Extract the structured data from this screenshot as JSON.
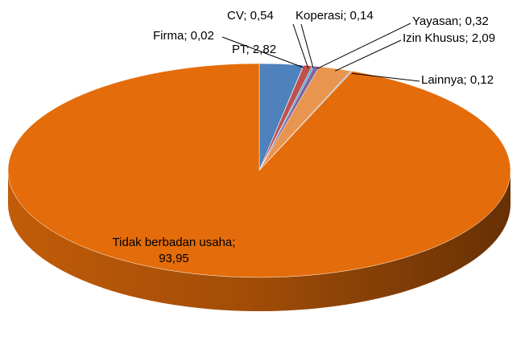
{
  "chart_data": {
    "type": "pie",
    "three_d": true,
    "label_separator": "; ",
    "categories": [
      "PT",
      "Firma",
      "CV",
      "Koperasi",
      "Yayasan",
      "Izin Khusus",
      "Lainnya",
      "Tidak berbadan usaha"
    ],
    "values": [
      2.82,
      0.02,
      0.54,
      0.14,
      0.32,
      2.09,
      0.12,
      93.95
    ],
    "value_labels": [
      "2,82",
      "0,02",
      "0,54",
      "0,14",
      "0,32",
      "2,09",
      "0,12",
      "93,95"
    ],
    "colors": [
      "#4f81bd",
      "#9bbb59",
      "#c0504d",
      "#4bacc6",
      "#8064a2",
      "#e8954f",
      "#b7b7b7",
      "#e46c0a"
    ]
  }
}
